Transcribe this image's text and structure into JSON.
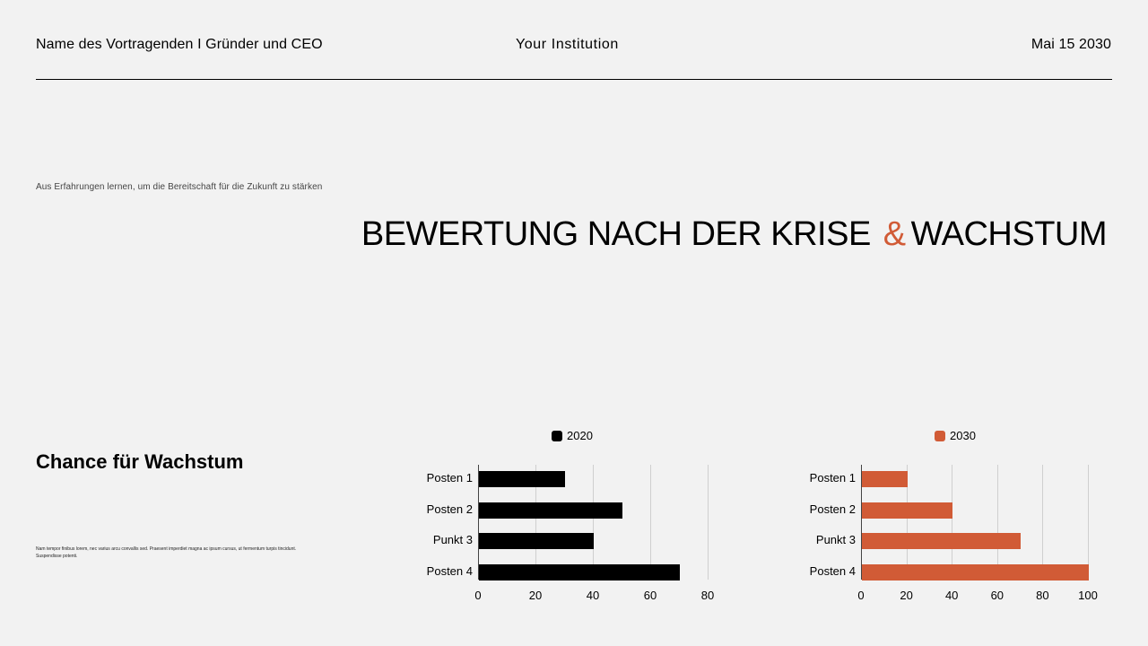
{
  "header": {
    "presenter": "Name des Vortragenden I Gründer und CEO",
    "institution": "Your Institution",
    "date": "Mai 15 2030"
  },
  "subtitle": "Aus Erfahrungen lernen, um die Bereitschaft für die Zukunft zu stärken",
  "title": {
    "part1": "BEWERTUNG NACH DER KRISE",
    "amp": "&",
    "part2": "WACHSTUM"
  },
  "section": {
    "heading": "Chance für Wachstum",
    "body": "Nam tempor finibus lorem, nec varius arcu convallis sed. Praesent imperdiet magna ac ipsum cursus, ut fermentum turpis tincidunt. Suspendisse potenti."
  },
  "colors": {
    "accent": "#d15b36",
    "primary": "#000000",
    "background": "#f2f2f2"
  },
  "chart_data": [
    {
      "type": "bar",
      "orientation": "horizontal",
      "title": "",
      "legend": [
        "2020"
      ],
      "legend_position": "top",
      "color": "#000000",
      "categories": [
        "Posten 1",
        "Posten 2",
        "Punkt 3",
        "Posten 4"
      ],
      "values": [
        30,
        50,
        40,
        70
      ],
      "xlim": [
        0,
        80
      ],
      "xticks": [
        "0",
        "20",
        "40",
        "60",
        "80"
      ],
      "grid": true,
      "xlabel": "",
      "ylabel": ""
    },
    {
      "type": "bar",
      "orientation": "horizontal",
      "title": "",
      "legend": [
        "2030"
      ],
      "legend_position": "top",
      "color": "#d15b36",
      "categories": [
        "Posten 1",
        "Posten 2",
        "Punkt 3",
        "Posten 4"
      ],
      "values": [
        20,
        40,
        70,
        100
      ],
      "xlim": [
        0,
        100
      ],
      "xticks": [
        "0",
        "20",
        "40",
        "60",
        "80",
        "100"
      ],
      "grid": true,
      "xlabel": "",
      "ylabel": ""
    }
  ]
}
